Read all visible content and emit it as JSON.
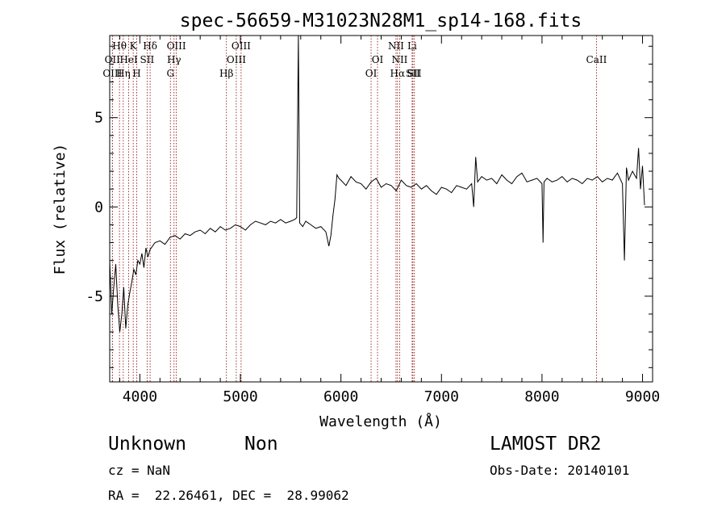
{
  "chart_data": {
    "type": "line",
    "title": "spec-56659-M31023N28M1_sp14-168.fits",
    "xlabel": "Wavelength (Å)",
    "ylabel": "Flux (relative)",
    "xlim": [
      3700,
      9100
    ],
    "ylim": [
      -9.8,
      9.6
    ],
    "xticks": [
      4000,
      5000,
      6000,
      7000,
      8000,
      9000
    ],
    "yticks": [
      -5,
      0,
      5
    ],
    "grid": false,
    "series": [
      {
        "x": [
          3700,
          3720,
          3740,
          3760,
          3780,
          3800,
          3820,
          3840,
          3860,
          3880,
          3900,
          3920,
          3940,
          3960,
          3980,
          4000,
          4020,
          4040,
          4060,
          4080,
          4100,
          4150,
          4200,
          4250,
          4300,
          4350,
          4400,
          4450,
          4500,
          4550,
          4600,
          4650,
          4700,
          4750,
          4800,
          4850,
          4900,
          4950,
          5000,
          5050,
          5100,
          5150,
          5200,
          5250,
          5300,
          5350,
          5400,
          5450,
          5500,
          5540,
          5560,
          5577,
          5590,
          5620,
          5650,
          5700,
          5750,
          5800,
          5850,
          5880,
          5900,
          5920,
          5940,
          5960,
          5980,
          6000,
          6050,
          6100,
          6150,
          6200,
          6250,
          6300,
          6350,
          6400,
          6450,
          6500,
          6550,
          6600,
          6650,
          6700,
          6750,
          6800,
          6850,
          6900,
          6950,
          7000,
          7050,
          7100,
          7150,
          7200,
          7250,
          7300,
          7320,
          7340,
          7360,
          7400,
          7450,
          7500,
          7550,
          7600,
          7650,
          7700,
          7750,
          7800,
          7850,
          7900,
          7950,
          8000,
          8010,
          8020,
          8050,
          8100,
          8150,
          8200,
          8250,
          8300,
          8350,
          8400,
          8450,
          8500,
          8550,
          8600,
          8650,
          8700,
          8750,
          8800,
          8820,
          8840,
          8860,
          8900,
          8940,
          8960,
          8980,
          9000,
          9020
        ],
        "y": [
          -3.0,
          -6.0,
          -4.5,
          -3.2,
          -5.5,
          -7.0,
          -6.0,
          -4.5,
          -6.8,
          -5.5,
          -4.8,
          -4.2,
          -3.5,
          -3.8,
          -3.0,
          -3.2,
          -2.6,
          -3.4,
          -2.3,
          -2.8,
          -2.4,
          -2.0,
          -1.9,
          -2.1,
          -1.7,
          -1.6,
          -1.8,
          -1.5,
          -1.6,
          -1.4,
          -1.3,
          -1.5,
          -1.2,
          -1.4,
          -1.1,
          -1.3,
          -1.2,
          -1.0,
          -1.1,
          -1.3,
          -1.0,
          -0.8,
          -0.9,
          -1.0,
          -0.8,
          -0.9,
          -0.7,
          -0.9,
          -0.8,
          -0.7,
          -0.6,
          9.6,
          -0.9,
          -1.1,
          -0.8,
          -1.0,
          -1.2,
          -1.1,
          -1.4,
          -2.2,
          -1.6,
          -0.5,
          0.4,
          1.8,
          1.6,
          1.5,
          1.2,
          1.7,
          1.4,
          1.3,
          1.0,
          1.4,
          1.6,
          1.1,
          1.3,
          1.2,
          0.9,
          1.5,
          1.2,
          1.1,
          1.3,
          1.0,
          1.2,
          0.9,
          0.7,
          1.1,
          1.0,
          0.8,
          1.2,
          1.1,
          1.0,
          1.3,
          0.0,
          2.8,
          1.4,
          1.7,
          1.5,
          1.6,
          1.3,
          1.8,
          1.5,
          1.3,
          1.7,
          1.9,
          1.4,
          1.5,
          1.6,
          1.3,
          -2.0,
          1.4,
          1.6,
          1.4,
          1.5,
          1.7,
          1.4,
          1.6,
          1.5,
          1.3,
          1.6,
          1.5,
          1.7,
          1.4,
          1.6,
          1.5,
          1.9,
          1.3,
          -3.0,
          2.2,
          1.5,
          2.0,
          1.6,
          3.3,
          1.0,
          2.3,
          0.1
        ]
      }
    ],
    "lines": [
      {
        "name": "Hθ",
        "w": 3797,
        "row": 1
      },
      {
        "name": "OII",
        "w": 3726,
        "row": 2
      },
      {
        "name": "OIII",
        "w": 3727,
        "row": 3
      },
      {
        "name": "Hη",
        "w": 3835,
        "row": 3
      },
      {
        "name": "HeI",
        "w": 3889,
        "row": 2
      },
      {
        "name": "K",
        "w": 3934,
        "row": 1
      },
      {
        "name": "H",
        "w": 3969,
        "row": 3
      },
      {
        "name": "SII",
        "w": 4072,
        "row": 2
      },
      {
        "name": "Hδ",
        "w": 4102,
        "row": 1
      },
      {
        "name": "OIII",
        "w": 4363,
        "row": 1
      },
      {
        "name": "Hγ",
        "w": 4340,
        "row": 2
      },
      {
        "name": "G",
        "w": 4304,
        "row": 3
      },
      {
        "name": "Hβ",
        "w": 4861,
        "row": 3
      },
      {
        "name": "OIII",
        "w": 4959,
        "row": 2
      },
      {
        "name": "OIII",
        "w": 5007,
        "row": 1
      },
      {
        "name": "OI",
        "w": 6300,
        "row": 3
      },
      {
        "name": "OI",
        "w": 6364,
        "row": 2
      },
      {
        "name": "NII",
        "w": 6548,
        "row": 1
      },
      {
        "name": "NII",
        "w": 6584,
        "row": 2
      },
      {
        "name": "Hα",
        "w": 6563,
        "row": 3
      },
      {
        "name": "Li",
        "w": 6708,
        "row": 1
      },
      {
        "name": "SII",
        "w": 6716,
        "row": 3
      },
      {
        "name": "SII",
        "w": 6731,
        "row": 3
      },
      {
        "name": "CaII",
        "w": 8542,
        "row": 2
      }
    ]
  },
  "footer": {
    "object_class": "Unknown",
    "subclass": "Non",
    "survey": "LAMOST DR2",
    "cz": "cz = NaN",
    "obs_date": "Obs-Date: 20140101",
    "coords": "RA =  22.26461, DEC =  28.99062"
  }
}
